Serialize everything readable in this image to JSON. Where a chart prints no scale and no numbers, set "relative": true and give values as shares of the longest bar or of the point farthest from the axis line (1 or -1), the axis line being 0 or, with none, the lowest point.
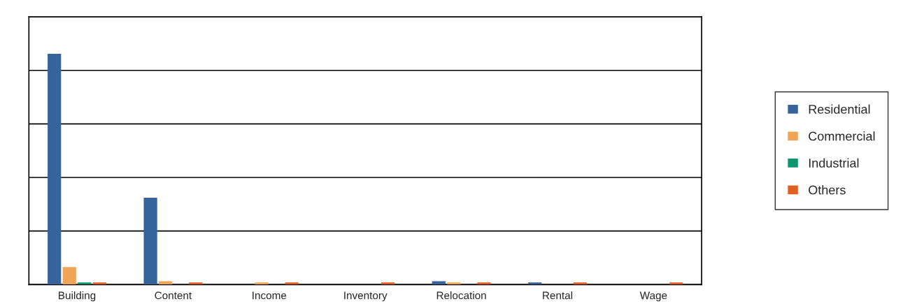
{
  "chart_data": {
    "type": "bar",
    "relative": true,
    "categories": [
      "Building",
      "Content",
      "Income",
      "Inventory",
      "Relocation",
      "Rental",
      "Wage"
    ],
    "series": [
      {
        "name": "Residential",
        "color": "#36649a",
        "values": [
          1,
          0.376,
          null,
          null,
          0.015,
          0.009,
          null
        ]
      },
      {
        "name": "Commercial",
        "color": "#f0a556",
        "values": [
          0.076,
          0.015,
          0.009,
          null,
          0.009,
          null,
          null
        ]
      },
      {
        "name": "Industrial",
        "color": "#0f9470",
        "values": [
          0.009,
          null,
          null,
          null,
          null,
          null,
          null
        ]
      },
      {
        "name": "Others",
        "color": "#e25f22",
        "values": [
          0.009,
          0.009,
          0.009,
          0.009,
          0.009,
          0.009,
          0.009
        ]
      }
    ],
    "grid": "y",
    "legend": "right"
  }
}
